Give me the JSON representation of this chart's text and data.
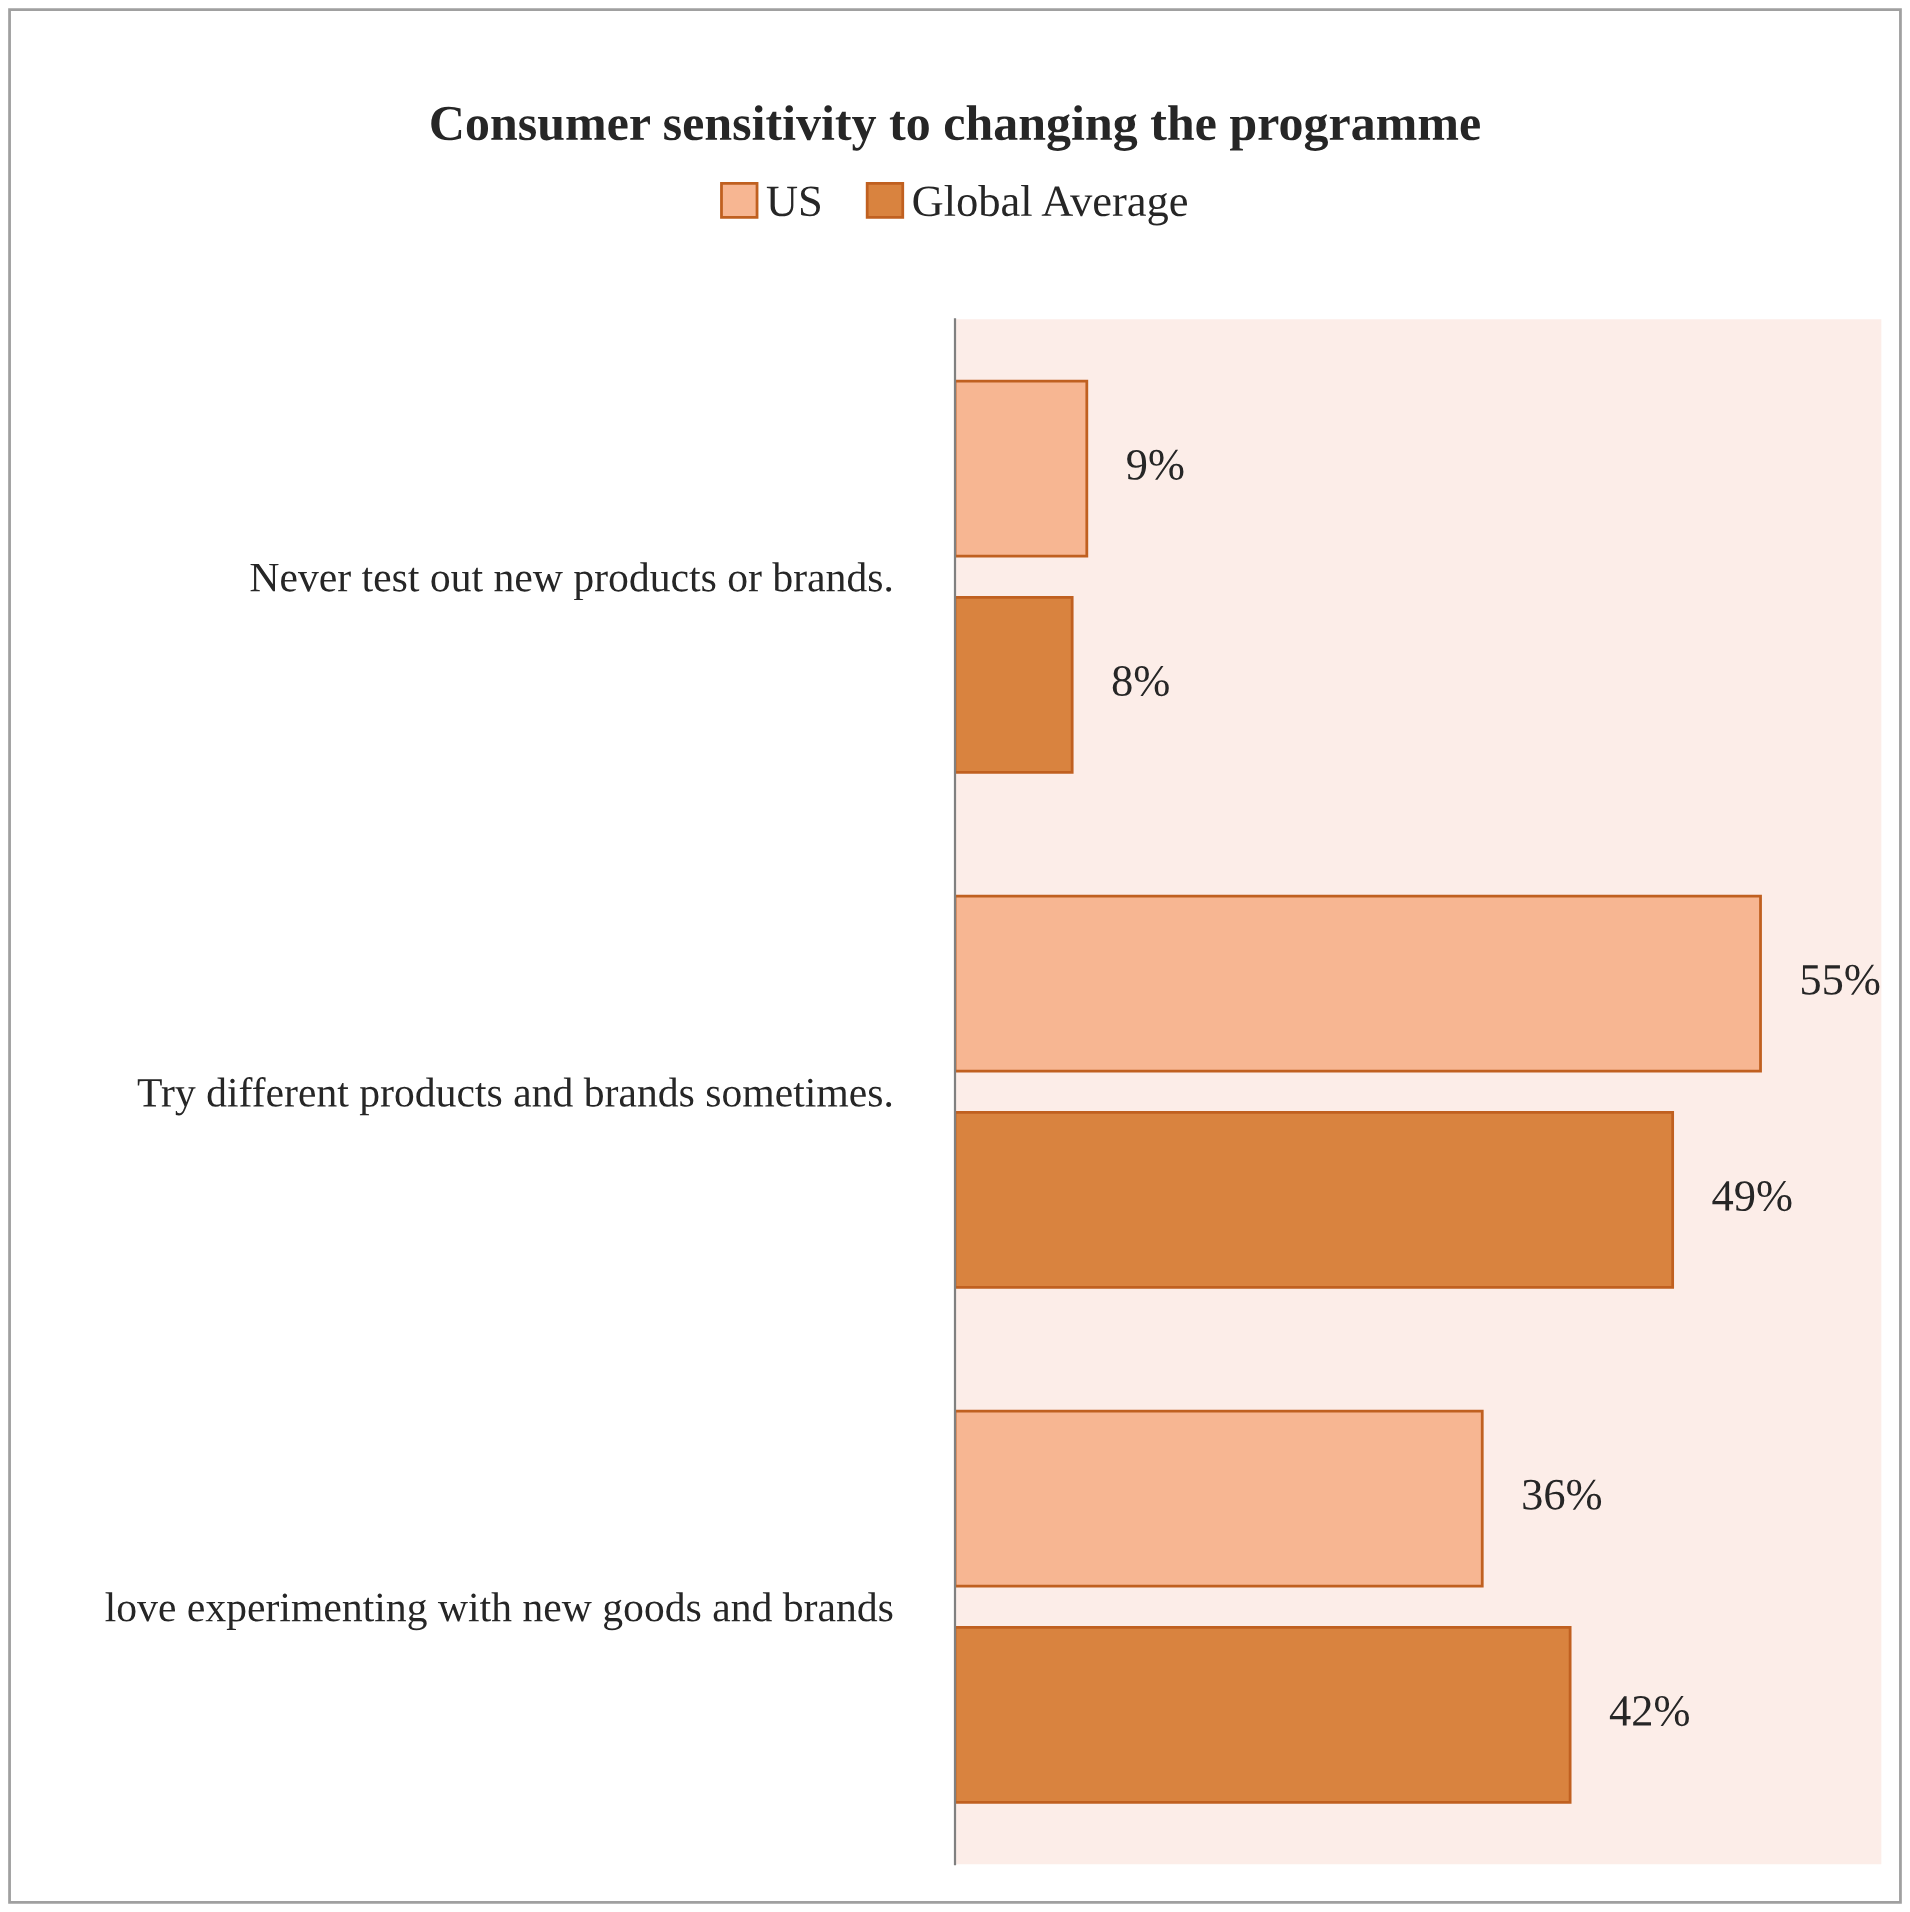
{
  "chart_data": {
    "type": "bar",
    "orientation": "horizontal",
    "title": "Consumer sensitivity to changing the programme",
    "categories": [
      "Never test out new products or brands.",
      "Try different products and brands sometimes.",
      "love experimenting with new goods and brands"
    ],
    "series": [
      {
        "name": "US",
        "color": "#f7b692",
        "values": [
          9,
          55,
          36
        ],
        "value_labels": [
          "9%",
          "55%",
          "36%"
        ]
      },
      {
        "name": "Global Average",
        "color": "#d9833f",
        "values": [
          8,
          49,
          42
        ],
        "value_labels": [
          "8%",
          "49%",
          "42%"
        ]
      }
    ],
    "tick_labels": "y",
    "legend": "top",
    "grid": false
  }
}
